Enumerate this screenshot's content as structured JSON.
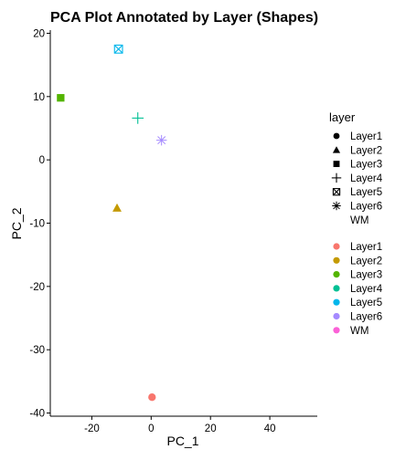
{
  "chart_data": {
    "type": "scatter",
    "title": "PCA Plot Annotated by Layer (Shapes)",
    "xlabel": "PC_1",
    "ylabel": "PC_2",
    "xlim": [
      -34,
      56
    ],
    "ylim": [
      -40.5,
      20.5
    ],
    "xticks": [
      -20,
      0,
      20,
      40
    ],
    "yticks": [
      20,
      10,
      0,
      -10,
      -20,
      -30,
      -40
    ],
    "grid": false,
    "legend_position": "right",
    "legend_title": "layer",
    "points": [
      {
        "layer": "Layer1",
        "x": 0.3,
        "y": -37.5
      },
      {
        "layer": "Layer2",
        "x": -11.5,
        "y": -7.6
      },
      {
        "layer": "Layer3",
        "x": -30.5,
        "y": 9.8
      },
      {
        "layer": "Layer4",
        "x": -4.5,
        "y": 6.6
      },
      {
        "layer": "Layer5",
        "x": -11,
        "y": 17.5
      },
      {
        "layer": "Layer6",
        "x": 3.5,
        "y": 3.1
      }
    ],
    "shape_legend": [
      {
        "label": "Layer1",
        "shape": "circle"
      },
      {
        "label": "Layer2",
        "shape": "triangle"
      },
      {
        "label": "Layer3",
        "shape": "square"
      },
      {
        "label": "Layer4",
        "shape": "plus"
      },
      {
        "label": "Layer5",
        "shape": "boxed-x"
      },
      {
        "label": "Layer6",
        "shape": "asterisk"
      },
      {
        "label": "WM",
        "shape": "none"
      }
    ],
    "color_legend": [
      {
        "label": "Layer1",
        "color": "#F8766D"
      },
      {
        "label": "Layer2",
        "color": "#C49A00"
      },
      {
        "label": "Layer3",
        "color": "#53B400"
      },
      {
        "label": "Layer4",
        "color": "#00C094"
      },
      {
        "label": "Layer5",
        "color": "#00B6EB"
      },
      {
        "label": "Layer6",
        "color": "#A58AFF"
      },
      {
        "label": "WM",
        "color": "#FB61D7"
      }
    ]
  }
}
